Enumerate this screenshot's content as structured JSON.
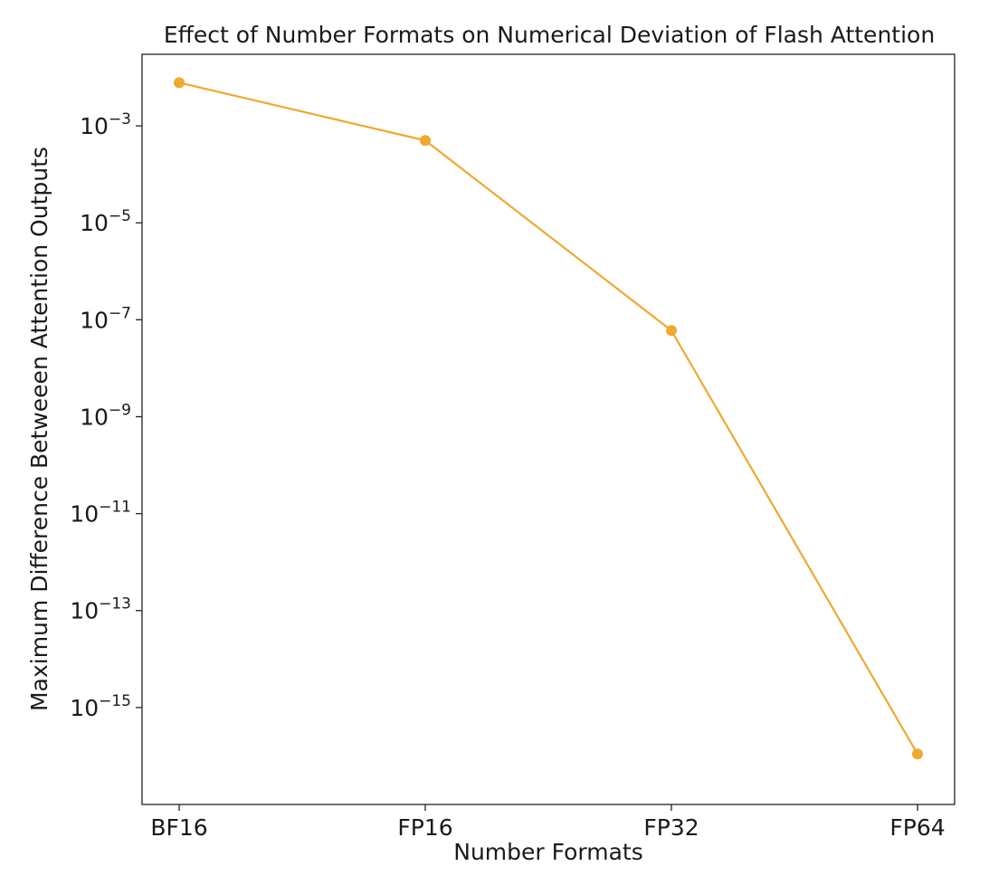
{
  "chart_data": {
    "type": "line",
    "title": "Effect of Number Formats on Numerical Deviation of Flash Attention",
    "xlabel": "Number Formats",
    "ylabel": "Maximum Difference Betweeen Attention Outputs",
    "yscale": "log",
    "ylim": [
      1e-17,
      0.03
    ],
    "categories": [
      "BF16",
      "FP16",
      "FP32",
      "FP64"
    ],
    "series": [
      {
        "values": [
          0.0078,
          0.0005,
          6e-08,
          1.1e-16
        ]
      }
    ],
    "y_ticks": [
      {
        "base": "10",
        "exp": "−3",
        "value": 0.001
      },
      {
        "base": "10",
        "exp": "−5",
        "value": 1e-05
      },
      {
        "base": "10",
        "exp": "−7",
        "value": 1e-07
      },
      {
        "base": "10",
        "exp": "−9",
        "value": 1e-09
      },
      {
        "base": "10",
        "exp": "−11",
        "value": 1e-11
      },
      {
        "base": "10",
        "exp": "−13",
        "value": 1e-13
      },
      {
        "base": "10",
        "exp": "−15",
        "value": 1e-15
      }
    ],
    "grid": false,
    "colors": {
      "line": "#f0a830",
      "axis": "#222222"
    }
  }
}
